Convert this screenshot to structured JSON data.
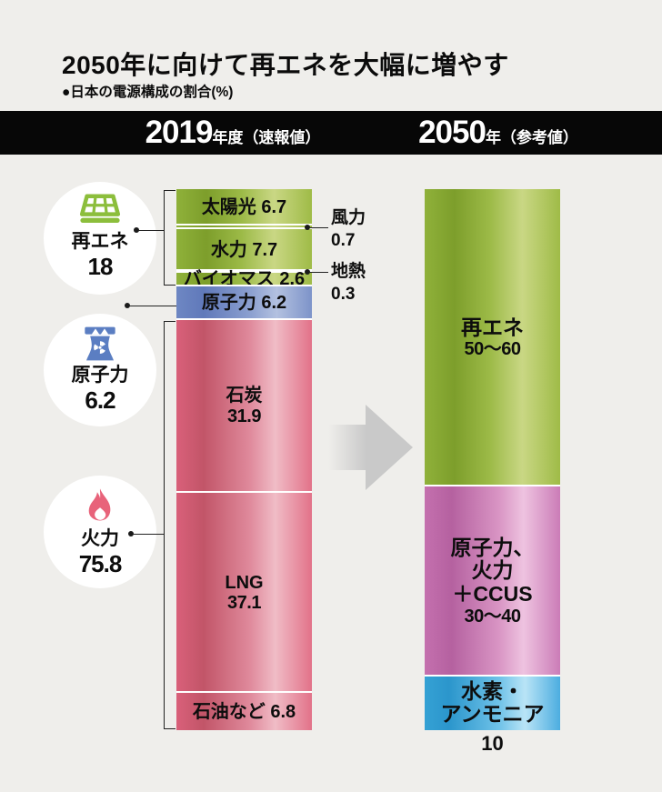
{
  "title": {
    "text": "2050年に向けて再エネを大幅に増やす",
    "subtitle": "●日本の電源構成の割合(%)"
  },
  "header": {
    "col_2019": {
      "big": "2019",
      "small": "年度（速報値）"
    },
    "col_2050": {
      "big": "2050",
      "small": "年（参考値）"
    }
  },
  "legend_groups": [
    {
      "id": "renewables",
      "icon": "solar-panel-icon",
      "name": "再エネ",
      "value": "18"
    },
    {
      "id": "nuclear",
      "icon": "nuclear-plant-icon",
      "name": "原子力",
      "value": "6.2"
    },
    {
      "id": "thermal",
      "icon": "flame-icon",
      "name": "火力",
      "value": "75.8"
    }
  ],
  "callouts": {
    "wind": {
      "name": "風力",
      "value": "0.7"
    },
    "geothermal": {
      "name": "地熱",
      "value": "0.3"
    }
  },
  "colors": {
    "background": "#efeeeb",
    "header_band": "#070707",
    "renewable_green": "#8fb13a",
    "nuclear_blue": "#6e87c3",
    "thermal_red": "#d9607a",
    "ccus_magenta": "#c470ae",
    "hydrogen_cyan": "#35a1d4",
    "icon_green": "#8cbe3c",
    "icon_blue": "#5b7ec2",
    "icon_pink": "#e8637a",
    "arrow_grey": "#c9c9c9"
  },
  "chart_data": {
    "type": "bar",
    "stacked": true,
    "unit": "%",
    "title": "2050年に向けて再エネを大幅に増やす",
    "subtitle": "日本の電源構成の割合(%)",
    "ylim": [
      0,
      100
    ],
    "columns": [
      {
        "year": "2019",
        "note": "速報値",
        "group_totals": {
          "再エネ": 18,
          "原子力": 6.2,
          "火力": 75.8
        },
        "segments": [
          {
            "id": "solar",
            "name": "太陽光",
            "value": 6.7,
            "color": "green",
            "lines": [
              {
                "t": "太陽光 6.7"
              }
            ]
          },
          {
            "id": "wind",
            "name": "風力",
            "value": 0.7,
            "color": "green",
            "lines": []
          },
          {
            "id": "hydro",
            "name": "水力",
            "value": 7.7,
            "color": "green",
            "lines": [
              {
                "t": "水力 7.7"
              }
            ]
          },
          {
            "id": "geothermal",
            "name": "地熱",
            "value": 0.3,
            "color": "green",
            "lines": []
          },
          {
            "id": "biomass",
            "name": "バイオマス",
            "value": 2.6,
            "color": "green",
            "lines": [
              {
                "t": "バイオマス 2.6"
              }
            ]
          },
          {
            "id": "nuclear",
            "name": "原子力",
            "value": 6.2,
            "color": "blue",
            "lines": [
              {
                "t": "原子力 6.2"
              }
            ]
          },
          {
            "id": "coal",
            "name": "石炭",
            "value": 31.9,
            "color": "red",
            "lines": [
              {
                "t": "石炭"
              },
              {
                "t": "31.9",
                "num": true
              }
            ]
          },
          {
            "id": "lng",
            "name": "LNG",
            "value": 37.1,
            "color": "red",
            "lines": [
              {
                "t": "LNG"
              },
              {
                "t": "37.1",
                "num": true
              }
            ]
          },
          {
            "id": "oil",
            "name": "石油など",
            "value": 6.8,
            "color": "red",
            "lines": [
              {
                "t": "石油など 6.8"
              }
            ]
          }
        ]
      },
      {
        "year": "2050",
        "note": "参考値",
        "segments": [
          {
            "id": "renewables",
            "name": "再エネ",
            "value": 55,
            "range": "50～60",
            "color": "green",
            "lines": [
              {
                "t": "再エネ"
              },
              {
                "t": "50～60",
                "num": true
              }
            ]
          },
          {
            "id": "nuclear-thermal-ccus",
            "name": "原子力、火力＋CCUS",
            "value": 35,
            "range": "30～40",
            "color": "magenta",
            "lines": [
              {
                "t": "原子力、"
              },
              {
                "t": "火力"
              },
              {
                "t": "＋CCUS"
              },
              {
                "t": "30～40",
                "num": true
              }
            ]
          },
          {
            "id": "hydrogen-ammonia",
            "name": "水素・アンモニア",
            "value": 10,
            "color": "cyan",
            "lines": [
              {
                "t": "水素・"
              },
              {
                "t": "アンモニア"
              }
            ],
            "label_below": "10"
          }
        ]
      }
    ]
  }
}
